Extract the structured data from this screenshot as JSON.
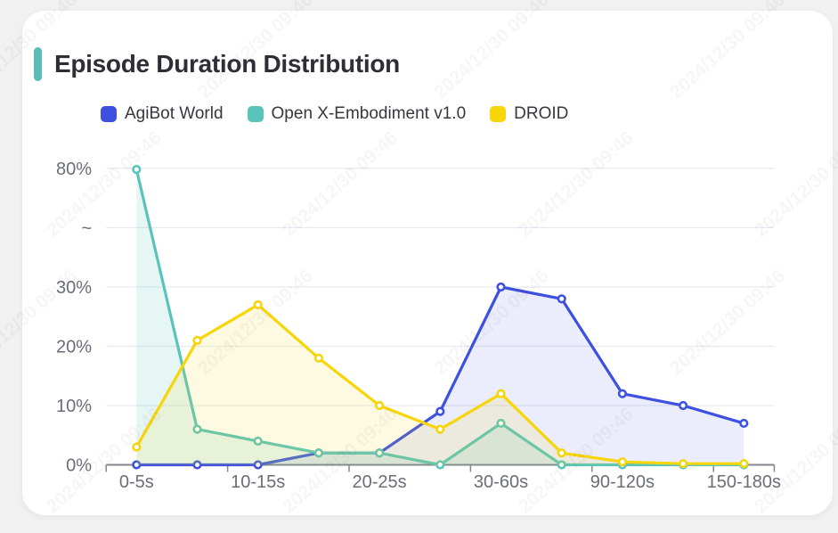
{
  "page": {
    "background": "#f1f1f2"
  },
  "header": {
    "title": "Episode Duration Distribution",
    "accent_color": "#5bbcb6"
  },
  "watermark": {
    "text": "2024/12/30 09:46"
  },
  "chart_data": {
    "type": "line",
    "title": "Episode Duration Distribution",
    "legend_position": "top",
    "grid": true,
    "x_axis": {
      "num_points": 11,
      "tick_labels": [
        {
          "index": 0,
          "label": "0-5s"
        },
        {
          "index": 2,
          "label": "10-15s"
        },
        {
          "index": 4,
          "label": "20-25s"
        },
        {
          "index": 6,
          "label": "30-60s"
        },
        {
          "index": 8,
          "label": "90-120s"
        },
        {
          "index": 10,
          "label": "150-180s"
        }
      ]
    },
    "y_axis": {
      "unit": "%",
      "has_break": true,
      "break_between": [
        30,
        80
      ],
      "ticks": [
        {
          "label": "0%",
          "value": 0
        },
        {
          "label": "10%",
          "value": 10
        },
        {
          "label": "20%",
          "value": 20
        },
        {
          "label": "30%",
          "value": 30
        },
        {
          "label": "~",
          "value": 55
        },
        {
          "label": "80%",
          "value": 80
        }
      ]
    },
    "series": [
      {
        "name": "AgiBot World",
        "color": "#3d50e0",
        "fill_opacity": 0.1,
        "values": [
          0,
          0,
          0,
          2,
          2,
          9,
          30,
          28,
          12,
          10,
          7
        ]
      },
      {
        "name": "Open X-Embodiment v1.0",
        "color": "#5ac4bb",
        "fill_opacity": 0.15,
        "values": [
          79.5,
          6,
          4,
          2,
          2,
          0,
          7,
          0,
          0,
          0,
          0
        ]
      },
      {
        "name": "DROID",
        "color": "#f6d50a",
        "fill_opacity": 0.12,
        "values": [
          3,
          21,
          27,
          18,
          10,
          6,
          12,
          2,
          0.5,
          0.2,
          0.2
        ]
      }
    ],
    "style_colors": {
      "gridline": "#e7ebf1",
      "axis_line": "#86868d",
      "axis_label": "#6b6e78",
      "legend_text": "#37373f"
    }
  }
}
